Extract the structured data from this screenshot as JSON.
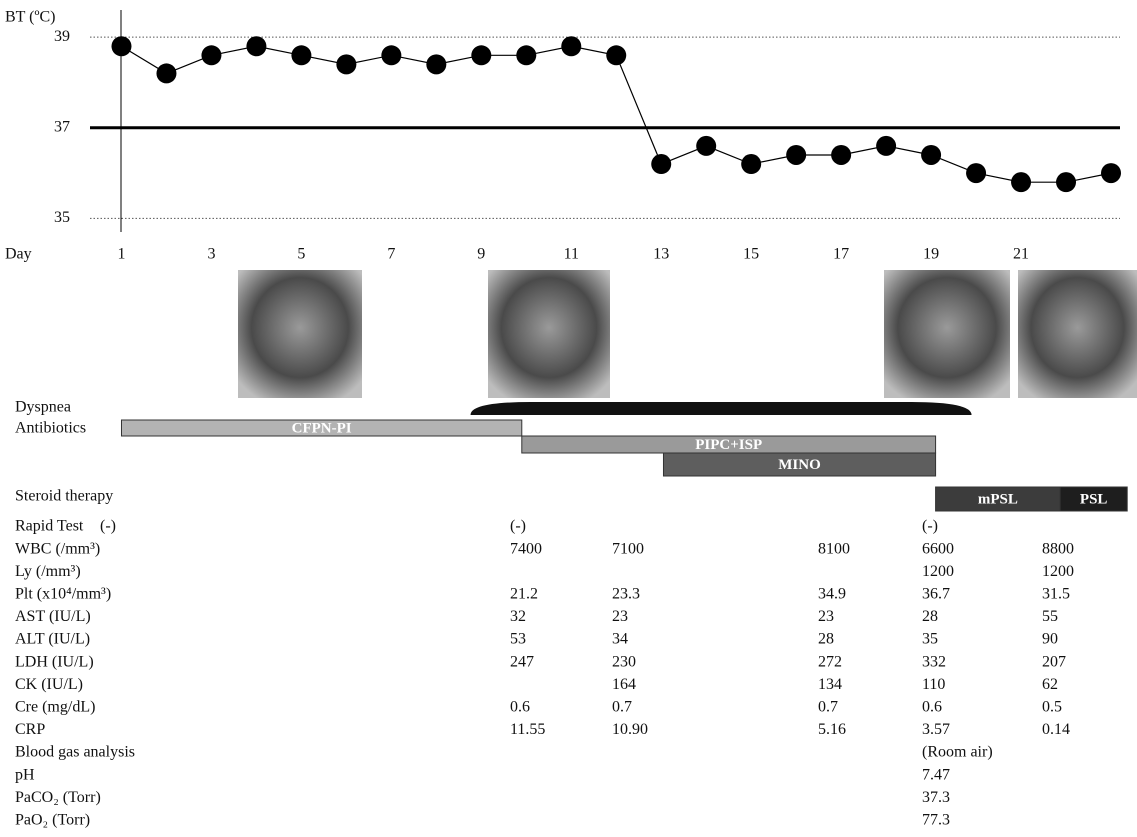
{
  "chart_data": {
    "type": "line",
    "y_label": "BT (ºC)",
    "x_label": "Day",
    "x": [
      1,
      2,
      3,
      4,
      5,
      6,
      7,
      8,
      9,
      10,
      11,
      12,
      13,
      14,
      15,
      16,
      17,
      18,
      19,
      20,
      21,
      22,
      23
    ],
    "series": [
      {
        "color": "#000000",
        "values": [
          38.8,
          38.2,
          38.6,
          38.8,
          38.6,
          38.4,
          38.6,
          38.4,
          38.6,
          38.6,
          38.8,
          38.6,
          36.2,
          36.6,
          36.2,
          36.4,
          36.4,
          36.6,
          36.4,
          36.0,
          35.8,
          35.8,
          36.0
        ]
      }
    ],
    "xlim": [
      0.3,
      23.2
    ],
    "xticks": [
      1,
      3,
      5,
      7,
      9,
      11,
      13,
      15,
      17,
      19,
      21
    ],
    "ylim": [
      34.7,
      39.6
    ],
    "yticks": [
      35,
      37,
      39
    ],
    "reference_line": 37,
    "grid": true
  },
  "timeline": {
    "dyspnea": {
      "label": "Dyspnea",
      "start": 8.76,
      "end": 19.9
    },
    "antibiotics_label": "Antibiotics",
    "steroid_label": "Steroid therapy",
    "bars": [
      {
        "label": "CFPN-PI",
        "start": 1,
        "end": 9.9,
        "color": "#b3b3b3"
      },
      {
        "label": "PIPC+ISP",
        "start": 9.9,
        "end": 19.1,
        "color": "#9a9a9a"
      },
      {
        "label": "MINO",
        "start": 13.05,
        "end": 19.1,
        "color": "#5e5e5e"
      },
      {
        "label": "mPSL",
        "start": 19.1,
        "end": 21.87,
        "color": "#3c3c3c"
      },
      {
        "label": "PSL",
        "start": 21.87,
        "end": 23.36,
        "color": "#1e1e1e"
      }
    ]
  },
  "table": {
    "rows": [
      {
        "label": "Rapid Test",
        "cells": [
          "(-)",
          "(-)",
          null,
          null,
          "(-)",
          null
        ]
      },
      {
        "label": "WBC (/mm³)",
        "cells": [
          null,
          "7400",
          "7100",
          "8100",
          "6600",
          "8800"
        ]
      },
      {
        "label": "Ly (/mm³)",
        "cells": [
          null,
          null,
          null,
          null,
          "1200",
          "1200"
        ]
      },
      {
        "label": "Plt (x10⁴/mm³)",
        "cells": [
          null,
          "21.2",
          "23.3",
          "34.9",
          "36.7",
          "31.5"
        ]
      },
      {
        "label": "AST (IU/L)",
        "cells": [
          null,
          "32",
          "23",
          "23",
          "28",
          "55"
        ]
      },
      {
        "label": "ALT (IU/L)",
        "cells": [
          null,
          "53",
          "34",
          "28",
          "35",
          "90"
        ]
      },
      {
        "label": "LDH (IU/L)",
        "cells": [
          null,
          "247",
          "230",
          "272",
          "332",
          "207"
        ]
      },
      {
        "label": "CK (IU/L)",
        "cells": [
          null,
          null,
          "164",
          "134",
          "110",
          "62"
        ]
      },
      {
        "label": "Cre (mg/dL)",
        "cells": [
          null,
          "0.6",
          "0.7",
          "0.7",
          "0.6",
          "0.5"
        ]
      },
      {
        "label": "CRP",
        "cells": [
          null,
          "11.55",
          "10.90",
          "5.16",
          "3.57",
          "0.14"
        ]
      },
      {
        "label": "Blood gas analysis",
        "cells": [
          null,
          null,
          null,
          null,
          "(Room air)",
          null
        ]
      },
      {
        "label": "pH",
        "cells": [
          null,
          null,
          null,
          null,
          "7.47",
          null
        ]
      },
      {
        "label": "PaCO₂ (Torr)",
        "cells": [
          null,
          null,
          null,
          null,
          "37.3",
          null
        ]
      },
      {
        "label": "PaO₂ (Torr)",
        "cells": [
          null,
          null,
          null,
          null,
          "77.3",
          null
        ]
      }
    ]
  }
}
